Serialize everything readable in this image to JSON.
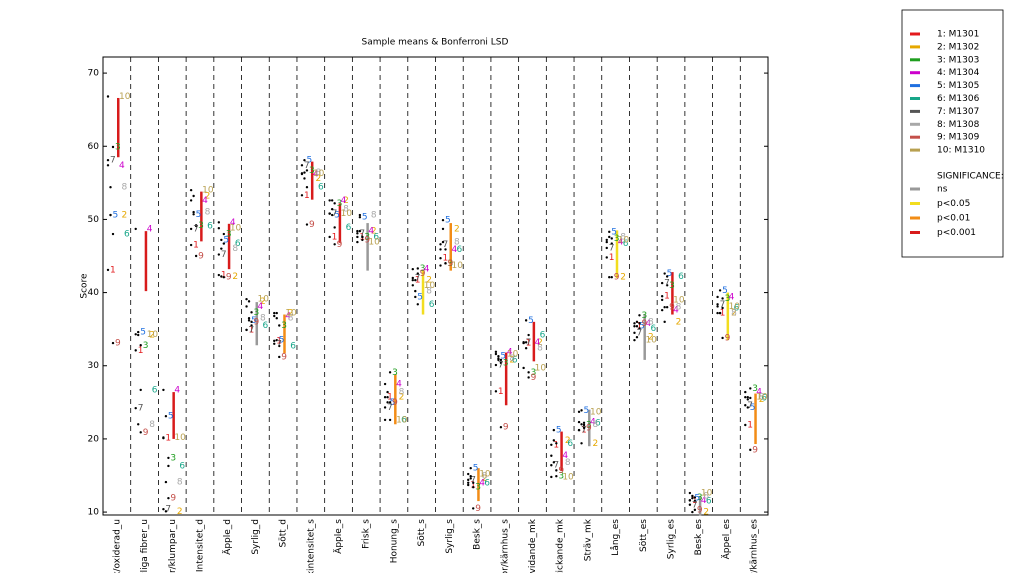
{
  "chart_data": {
    "type": "lsd",
    "title": "Sample means & Bonferroni LSD",
    "y_label": "Score",
    "ylim": [
      9.6,
      72.2
    ],
    "yticks": [
      10,
      20,
      30,
      40,
      50,
      60,
      70
    ],
    "categories": [
      "rk/oxiderad_u",
      "yliga fibrer_u",
      "rer/klumpar_u",
      "Intensitet_d",
      "Äpple_d",
      "Syrlig_d",
      "Sött_d",
      "akintensitet_s",
      "Äpple_s",
      "Frisk_s",
      "Honung_s",
      "Sött_s",
      "Syrlig_s",
      "Besk_s",
      "or/kärnhus_s",
      "Svidande_mk",
      "Stickande_mk",
      "Sträv_mk",
      "Lång_es",
      "Sött_es",
      "Syrlig_es",
      "Besk_es",
      "Äppel_es",
      "or/kärnhus_es"
    ],
    "series": [
      {
        "name": "1: M1301",
        "label": "1",
        "color": "#e31a1c",
        "values": [
          43.1,
          32.1,
          20.1,
          46.5,
          42.4,
          34.9,
          33.4,
          53.3,
          47.6,
          47.6,
          25.7,
          41.7,
          44.7,
          13.7,
          26.5,
          33.1,
          19.2,
          21.2,
          44.8,
          35.4,
          39.5,
          11.6,
          37.2,
          21.9
        ]
      },
      {
        "name": "2: M1302",
        "label": "2",
        "color": "#e6a800",
        "values": [
          50.6,
          34.2,
          10.1,
          53.2,
          42.2,
          38.8,
          37.2,
          55.6,
          52.6,
          48.4,
          25.7,
          41.7,
          48.7,
          14.6,
          30.8,
          33.2,
          19.8,
          19.4,
          42.1,
          33.9,
          36,
          10,
          37.2,
          25.4
        ]
      },
      {
        "name": "3: M1303",
        "label": "3",
        "color": "#1f9e1f",
        "values": [
          59.9,
          32.8,
          17.4,
          49.2,
          48,
          37.3,
          35.5,
          56.7,
          52.2,
          47.6,
          29.1,
          43.3,
          44,
          13.4,
          30.4,
          29.1,
          14.9,
          21.9,
          47.4,
          36.9,
          41,
          12,
          39.2,
          26.9
        ]
      },
      {
        "name": "4: M1304",
        "label": "4",
        "color": "#cc00cc",
        "values": [
          57.4,
          48.7,
          26.7,
          52.6,
          49.6,
          38.1,
          36.8,
          56.2,
          52.6,
          48.4,
          27.5,
          43.2,
          45.9,
          14,
          31.9,
          33.2,
          17.7,
          22.3,
          46.9,
          35.8,
          37.6,
          11.6,
          39.4,
          26.4
        ]
      },
      {
        "name": "5: M1305",
        "label": "5",
        "color": "#1f6fe0",
        "values": [
          50.6,
          34.6,
          23.1,
          50.7,
          47.2,
          36.2,
          33.5,
          58.1,
          50.6,
          50.3,
          25,
          39.4,
          49.9,
          16,
          31.3,
          36.2,
          21.2,
          23.9,
          48.3,
          35.4,
          42.6,
          11.9,
          40.3,
          24.3
        ]
      },
      {
        "name": "6: M1306",
        "label": "6",
        "color": "#17a689",
        "values": [
          48,
          26.7,
          16.3,
          49.1,
          46.7,
          35.5,
          32.7,
          54.4,
          48.9,
          47.6,
          22.6,
          38.4,
          45.9,
          14,
          30.8,
          34.2,
          19.4,
          22.2,
          46.7,
          35.1,
          42.2,
          11.5,
          37.9,
          25.6
        ]
      },
      {
        "name": "7: M1307",
        "label": "7",
        "color": "#555555",
        "values": [
          58.1,
          24.2,
          10.4,
          48.7,
          45.2,
          34.9,
          33,
          57.4,
          50.8,
          48.1,
          24.3,
          42,
          46.6,
          14.4,
          30.1,
          33.2,
          16.4,
          21.2,
          46.1,
          34.5,
          41.3,
          11,
          38.4,
          24.6
        ]
      },
      {
        "name": "8: M1308",
        "label": "8",
        "color": "#a8a8a8",
        "values": [
          54.4,
          22,
          14.1,
          51,
          46,
          36.5,
          36.5,
          56.4,
          51.4,
          50.6,
          26.4,
          40.2,
          46.9,
          14.9,
          31,
          32.4,
          16.8,
          22,
          47.6,
          36,
          38,
          12.2,
          37.2,
          25.7
        ]
      },
      {
        "name": "9: M1309",
        "label": "9",
        "color": "#c4504a",
        "values": [
          33.1,
          20.9,
          11.9,
          45,
          42.1,
          36,
          31.2,
          49.3,
          46.6,
          47.2,
          25,
          42.6,
          44,
          10.5,
          21.6,
          28.4,
          15.7,
          21.5,
          42.1,
          35.8,
          38,
          10.3,
          33.8,
          18.5
        ]
      },
      {
        "name": "10: M1310",
        "label": "10",
        "color": "#b8a050",
        "values": [
          66.8,
          34.3,
          20.2,
          54,
          48.8,
          39.1,
          37.2,
          56.3,
          50.8,
          46.9,
          22.6,
          41,
          43.7,
          15.2,
          31.6,
          29.7,
          14.8,
          23.7,
          47.2,
          33.5,
          39,
          12.6,
          38.1,
          25.7
        ]
      }
    ],
    "significance_title": "SIGNIFICANCE:",
    "significance_levels": [
      {
        "name": "ns",
        "color": "#999999"
      },
      {
        "name": "p<0.05",
        "color": "#f2dd1f"
      },
      {
        "name": "p<0.01",
        "color": "#f28c16"
      },
      {
        "name": "p<0.001",
        "color": "#d81b1b"
      }
    ],
    "significance": [
      "p<0.001",
      "p<0.001",
      "p<0.001",
      "p<0.001",
      "p<0.001",
      "ns",
      "p<0.01",
      "p<0.001",
      "p<0.001",
      "ns",
      "p<0.01",
      "p<0.05",
      "p<0.01",
      "p<0.01",
      "p<0.001",
      "p<0.001",
      "p<0.001",
      "ns",
      "p<0.05",
      "ns",
      "p<0.001",
      "ns",
      "p<0.05",
      "p<0.01"
    ],
    "lsd_bars": [
      [
        58.5,
        66.6
      ],
      [
        40.2,
        48.4
      ],
      [
        20,
        26.4
      ],
      [
        47,
        53.8
      ],
      [
        43.2,
        49.4
      ],
      [
        32.8,
        38.7
      ],
      [
        31.7,
        37
      ],
      [
        52.7,
        57.9
      ],
      [
        46.8,
        52.2
      ],
      [
        43,
        49.5
      ],
      [
        22,
        28.8
      ],
      [
        37,
        43
      ],
      [
        43,
        49.5
      ],
      [
        11.5,
        16
      ],
      [
        24.6,
        31.8
      ],
      [
        30.6,
        36
      ],
      [
        15.6,
        21
      ],
      [
        19,
        24
      ],
      [
        42,
        48.5
      ],
      [
        30.8,
        37
      ],
      [
        37,
        42.8
      ],
      [
        9.5,
        12.2
      ],
      [
        33.5,
        40
      ],
      [
        19.3,
        26.2
      ]
    ]
  }
}
